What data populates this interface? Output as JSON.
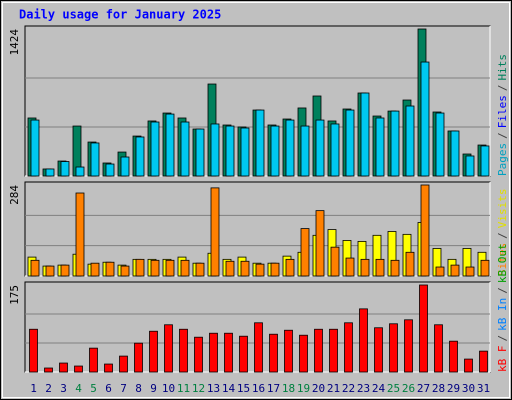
{
  "chart_data": {
    "type": "bar",
    "title": "Daily usage for January 2025",
    "categories": [
      "1",
      "2",
      "3",
      "4",
      "5",
      "6",
      "7",
      "8",
      "9",
      "10",
      "11",
      "12",
      "13",
      "14",
      "15",
      "16",
      "17",
      "18",
      "19",
      "20",
      "21",
      "22",
      "23",
      "24",
      "25",
      "26",
      "27",
      "28",
      "29",
      "30",
      "31"
    ],
    "category_colors": [
      "#000080",
      "#000080",
      "#000080",
      "#008040",
      "#008040",
      "#000080",
      "#000080",
      "#000080",
      "#000080",
      "#000080",
      "#008040",
      "#008040",
      "#000080",
      "#000080",
      "#000080",
      "#000080",
      "#000080",
      "#008040",
      "#008040",
      "#000080",
      "#000080",
      "#000080",
      "#000080",
      "#000080",
      "#008040",
      "#008040",
      "#000080",
      "#000080",
      "#000080",
      "#000080",
      "#000080"
    ],
    "panels": [
      {
        "ylim": [
          0,
          1424
        ],
        "yticks": [
          1424
        ],
        "legend": [
          {
            "text": "Pages",
            "color": "#00a0c0"
          },
          {
            "text": "/",
            "color": "#404040"
          },
          {
            "text": "Files",
            "color": "#0000ff"
          },
          {
            "text": "/",
            "color": "#404040"
          },
          {
            "text": "Hits",
            "color": "#00805c"
          }
        ],
        "series": [
          {
            "color": "#00805c",
            "values": [
              562,
              68,
              145,
              484,
              329,
              126,
              232,
              387,
              533,
              610,
              562,
              455,
              891,
              494,
              475,
              639,
              494,
              552,
              659,
              775,
              533,
              649,
              804,
              581,
              629,
              736,
              1424,
              620,
              436,
              213,
              300
            ]
          },
          {
            "color": "#00c8f0",
            "values": [
              542,
              68,
              140,
              87,
              320,
              116,
              184,
              378,
              523,
              600,
              523,
              455,
              504,
              484,
              465,
              639,
              484,
              542,
              484,
              542,
              504,
              639,
              804,
              562,
              629,
              678,
              1104,
              610,
              436,
              194,
              291
            ]
          }
        ]
      },
      {
        "ylim": [
          0,
          284
        ],
        "yticks": [
          284
        ],
        "legend": [
          {
            "text": "Sites",
            "color": "#ff8000"
          },
          {
            "text": "/",
            "color": "#404040"
          },
          {
            "text": "Visits",
            "color": "#e0e000"
          }
        ],
        "series": [
          {
            "color": "#ffff00",
            "values": [
              59,
              31,
              34,
              68,
              37,
              43,
              34,
              52,
              52,
              52,
              59,
              40,
              71,
              52,
              59,
              40,
              40,
              62,
              74,
              127,
              145,
              111,
              108,
              127,
              139,
              130,
              167,
              86,
              52,
              86,
              74
            ]
          },
          {
            "color": "#ff8000",
            "values": [
              49,
              31,
              34,
              259,
              40,
              43,
              31,
              52,
              49,
              49,
              49,
              40,
              275,
              46,
              46,
              37,
              40,
              52,
              148,
              204,
              90,
              56,
              52,
              52,
              49,
              74,
              284,
              28,
              34,
              28,
              49
            ]
          }
        ]
      },
      {
        "ylim": [
          0,
          175
        ],
        "yticks": [
          175
        ],
        "legend": [
          {
            "text": "kB F",
            "color": "#ff0000"
          },
          {
            "text": "/",
            "color": "#404040"
          },
          {
            "text": "kB In",
            "color": "#0080ff"
          },
          {
            "text": "/",
            "color": "#404040"
          },
          {
            "text": "kB Out",
            "color": "#00a000"
          }
        ],
        "series": [
          {
            "color": "#ff0000",
            "values": [
              86,
              8,
              18,
              12,
              48,
              16,
              32,
              58,
              82,
              95,
              86,
              70,
              78,
              78,
              72,
              99,
              76,
              84,
              74,
              86,
              86,
              99,
              127,
              89,
              97,
              105,
              175,
              95,
              62,
              26,
              42
            ]
          }
        ]
      }
    ]
  }
}
